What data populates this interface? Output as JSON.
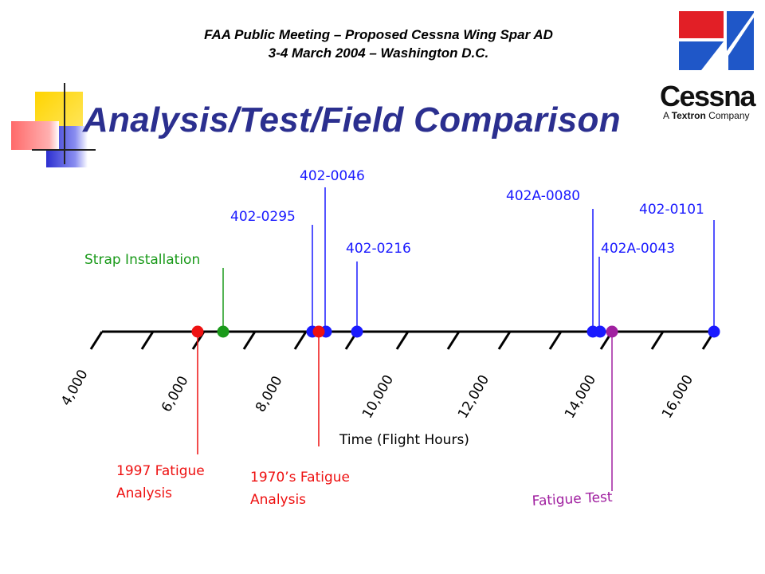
{
  "header": {
    "line1": "FAA Public Meeting – Proposed Cessna Wing Spar AD",
    "line2": "3-4 March 2004 – Washington D.C."
  },
  "title": "Analysis/Test/Field Comparison",
  "logo": {
    "wordmark": "Cessna",
    "tagline_prefix": "A ",
    "tagline_brand": "Textron",
    "tagline_suffix": " Company"
  },
  "axis": {
    "label": "Time (Flight Hours)",
    "ticks": [
      "4,000",
      "6,000",
      "8,000",
      "10,000",
      "12,000",
      "14,000",
      "16,000"
    ]
  },
  "colors": {
    "blue": "#1a1aff",
    "red": "#ee1111",
    "green": "#1a9a1a",
    "purple": "#a020a0",
    "title": "#2b2f8f"
  },
  "events_above": [
    {
      "label": "Strap Installation",
      "color": "green"
    },
    {
      "label": "402-0295",
      "color": "blue"
    },
    {
      "label": "402-0046",
      "color": "blue"
    },
    {
      "label": "402-0216",
      "color": "blue"
    },
    {
      "label": "402A-0080",
      "color": "blue"
    },
    {
      "label": "402A-0043",
      "color": "blue"
    },
    {
      "label": "402-0101",
      "color": "blue"
    }
  ],
  "events_below": [
    {
      "line1": "1997 Fatigue",
      "line2": "Analysis",
      "color": "red"
    },
    {
      "line1": "1970’s Fatigue",
      "line2": "Analysis",
      "color": "red"
    },
    {
      "line1": "Fatigue Test",
      "line2": "",
      "color": "purple"
    }
  ]
}
